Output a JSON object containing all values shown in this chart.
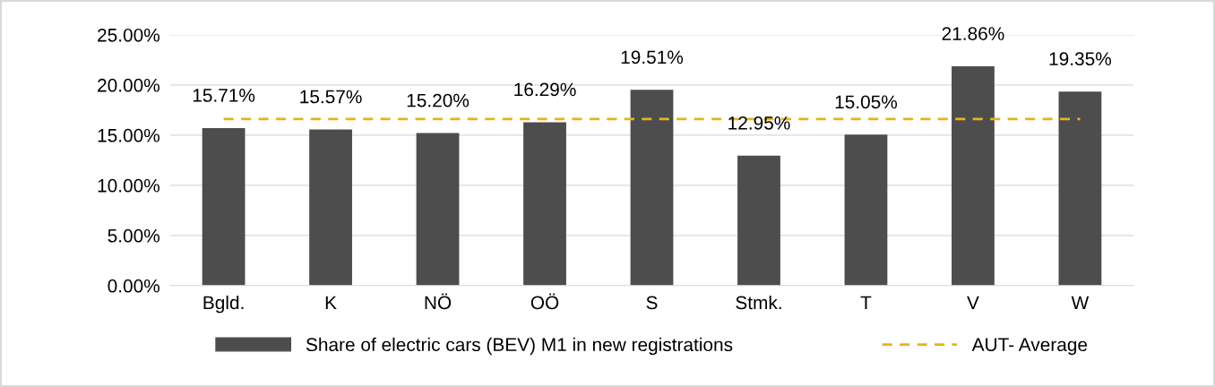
{
  "chart_data": {
    "type": "bar",
    "categories": [
      "Bgld.",
      "K",
      "NÖ",
      "OÖ",
      "S",
      "Stmk.",
      "T",
      "V",
      "W"
    ],
    "series": [
      {
        "name": "Share of electric cars (BEV) M1 in new registrations",
        "color": "#4d4d4d",
        "values": [
          15.71,
          15.57,
          15.2,
          16.29,
          19.51,
          12.95,
          15.05,
          21.86,
          19.35
        ],
        "value_labels": [
          "15.71%",
          "15.57%",
          "15.20%",
          "16.29%",
          "19.51%",
          "12.95%",
          "15.05%",
          "21.86%",
          "19.35%"
        ]
      },
      {
        "name": "AUT- Average",
        "type": "line",
        "color": "#e6b417",
        "line_style": "dashed",
        "marker": "none",
        "values": [
          16.6,
          16.6,
          16.6,
          16.6,
          16.6,
          16.6,
          16.6,
          16.6,
          16.6
        ]
      }
    ],
    "ylim": [
      0,
      25
    ],
    "yticks": [
      {
        "value": 0,
        "label": "0.00%"
      },
      {
        "value": 5,
        "label": "5.00%"
      },
      {
        "value": 10,
        "label": "10.00%"
      },
      {
        "value": 15,
        "label": "15.00%"
      },
      {
        "value": 20,
        "label": "20.00%"
      },
      {
        "value": 25,
        "label": "25.00%"
      }
    ],
    "grid": "y",
    "legend": "bottom"
  }
}
